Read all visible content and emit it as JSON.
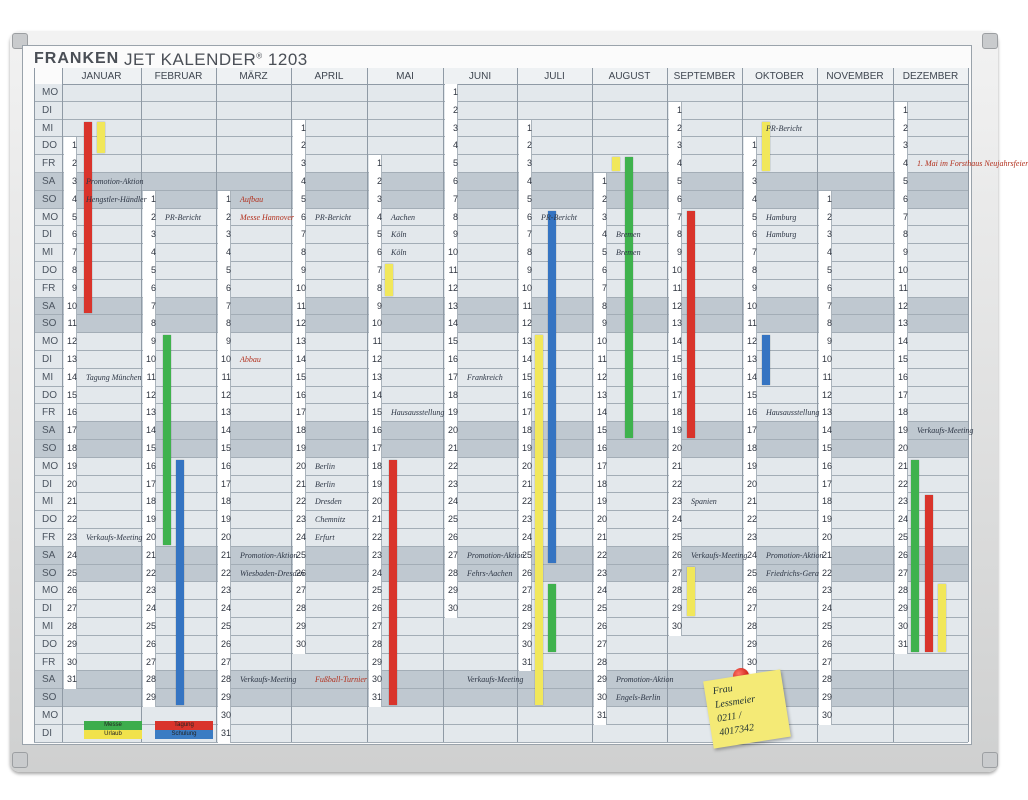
{
  "brand": "FRANKEN",
  "product": "JET KALENDER",
  "product_mark": "®",
  "product_code": "1203",
  "months": [
    "JANUAR",
    "FEBRUAR",
    "MÄRZ",
    "APRIL",
    "MAI",
    "JUNI",
    "JULI",
    "AUGUST",
    "SEPTEMBER",
    "OKTOBER",
    "NOVEMBER",
    "DEZEMBER"
  ],
  "weekdays": [
    "MO",
    "DI",
    "MI",
    "DO",
    "FR",
    "SA",
    "SO",
    "MO",
    "DI",
    "MI",
    "DO",
    "FR",
    "SA",
    "SO",
    "MO",
    "DI",
    "MI",
    "DO",
    "FR",
    "SA",
    "SO",
    "MO",
    "DI",
    "MI",
    "DO",
    "FR",
    "SA",
    "SO",
    "MO",
    "DI",
    "MI",
    "DO",
    "FR",
    "SA",
    "SO",
    "MO",
    "DI"
  ],
  "month_offsets": [
    3,
    6,
    6,
    2,
    4,
    0,
    2,
    5,
    1,
    3,
    6,
    1
  ],
  "month_lengths": [
    31,
    29,
    31,
    30,
    31,
    30,
    31,
    31,
    30,
    31,
    30,
    31
  ],
  "notes": [
    {
      "text": "Promotion-Aktion",
      "m": 0,
      "r": 5
    },
    {
      "text": "Hengstler-Händler",
      "m": 0,
      "r": 6
    },
    {
      "text": "Tagung München",
      "m": 0,
      "r": 16
    },
    {
      "text": "Verkaufs-Meeting",
      "m": 0,
      "r": 25
    },
    {
      "text": "PR-Bericht",
      "m": 1,
      "r": 7
    },
    {
      "text": "PR-Bericht",
      "m": 3,
      "r": 7
    },
    {
      "text": "Aufbau",
      "m": 2,
      "r": 6,
      "red": true
    },
    {
      "text": "Messe Hannover",
      "m": 2,
      "r": 7,
      "red": true
    },
    {
      "text": "Abbau",
      "m": 2,
      "r": 15,
      "red": true
    },
    {
      "text": "Promotion-Aktion",
      "m": 2,
      "r": 26
    },
    {
      "text": "Wiesbaden-Dresden",
      "m": 2,
      "r": 27
    },
    {
      "text": "Verkaufs-Meeting",
      "m": 2,
      "r": 33
    },
    {
      "text": "Fußball-Turnier",
      "m": 3,
      "r": 33,
      "red": true
    },
    {
      "text": "Berlin",
      "m": 3,
      "r": 21
    },
    {
      "text": "Berlin",
      "m": 3,
      "r": 22
    },
    {
      "text": "Dresden",
      "m": 3,
      "r": 23
    },
    {
      "text": "Chemnitz",
      "m": 3,
      "r": 24
    },
    {
      "text": "Erfurt",
      "m": 3,
      "r": 25
    },
    {
      "text": "Aachen",
      "m": 4,
      "r": 7
    },
    {
      "text": "Köln",
      "m": 4,
      "r": 8
    },
    {
      "text": "Köln",
      "m": 4,
      "r": 9
    },
    {
      "text": "Hausausstellung",
      "m": 4,
      "r": 18
    },
    {
      "text": "Frankreich",
      "m": 5,
      "r": 16
    },
    {
      "text": "Promotion-Aktion",
      "m": 5,
      "r": 26
    },
    {
      "text": "Fehrs-Aachen",
      "m": 5,
      "r": 27
    },
    {
      "text": "Verkaufs-Meeting",
      "m": 5,
      "r": 33
    },
    {
      "text": "PR-Bericht",
      "m": 6,
      "r": 7
    },
    {
      "text": "Bremen",
      "m": 7,
      "r": 8
    },
    {
      "text": "Bremen",
      "m": 7,
      "r": 9
    },
    {
      "text": "Promotion-Aktion",
      "m": 7,
      "r": 33
    },
    {
      "text": "Engels-Berlin",
      "m": 7,
      "r": 34
    },
    {
      "text": "Spanien",
      "m": 8,
      "r": 23
    },
    {
      "text": "Verkaufs-Meeting",
      "m": 8,
      "r": 26
    },
    {
      "text": "PR-Bericht",
      "m": 9,
      "r": 2
    },
    {
      "text": "Hamburg",
      "m": 9,
      "r": 7
    },
    {
      "text": "Hamburg",
      "m": 9,
      "r": 8
    },
    {
      "text": "Hausausstellung",
      "m": 9,
      "r": 18
    },
    {
      "text": "Promotion-Aktion",
      "m": 9,
      "r": 26
    },
    {
      "text": "Friedrichs-Gera",
      "m": 9,
      "r": 27
    },
    {
      "text": "1. Mai im Forsthaus Neujahrsfeier",
      "m": 11,
      "r": 4,
      "red": true
    },
    {
      "text": "Verkaufs-Meeting",
      "m": 11,
      "r": 19
    }
  ],
  "sticky_note": [
    "Frau",
    "Lessmeier",
    "0211 /",
    "4017342"
  ],
  "legend": [
    {
      "text": "Messe",
      "color": "#3dad4d"
    },
    {
      "text": "Urlaub",
      "color": "#f1e24b"
    },
    {
      "text": "Tagung",
      "color": "#d9342b"
    },
    {
      "text": "Schulung",
      "color": "#3b7cc3"
    }
  ],
  "colors": {
    "red": "#d9342b",
    "green": "#3fb24d",
    "blue": "#3574c2",
    "yellow": "#f1e75a"
  }
}
